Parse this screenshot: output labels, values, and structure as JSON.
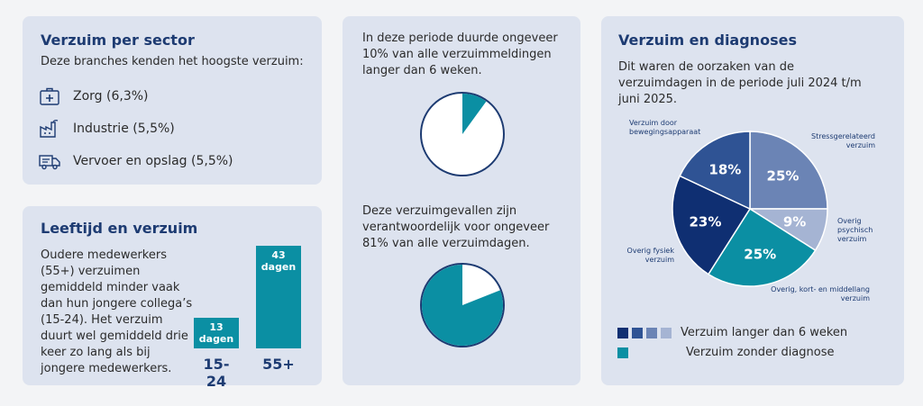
{
  "sector": {
    "title": "Verzuim per sector",
    "subtitle": "Deze branches kenden het hoogste verzuim:",
    "items": [
      {
        "label": "Zorg (6,3%)",
        "icon": "medical-kit-icon"
      },
      {
        "label": "Industrie (5,5%)",
        "icon": "factory-icon"
      },
      {
        "label": "Vervoer en opslag (5,5%)",
        "icon": "truck-icon"
      }
    ]
  },
  "age": {
    "title": "Leeftijd en verzuim",
    "text": "Oudere medewerkers (55+) verzuimen gemiddeld minder vaak dan hun jongere collega’s (15-24). Het verzuim duurt wel gemiddeld drie keer zo lang als bij jongere medewerkers.",
    "bars": [
      {
        "value": 13,
        "unit": "dagen",
        "label": "15-24"
      },
      {
        "value": 43,
        "unit": "dagen",
        "label": "55+"
      }
    ]
  },
  "middle": {
    "text1": "In deze periode duurde ongeveer 10% van alle verzuimmeldingen langer dan 6 weken.",
    "pie1_percent": 10,
    "text2": "Deze verzuimgevallen zijn verantwoordelijk voor ongeveer 81% van alle verzuimdagen.",
    "pie2_percent": 81
  },
  "diagnoses": {
    "title": "Verzuim en diagnoses",
    "subtitle": "Dit waren de oorzaken van de verzuimdagen in de periode juli 2024 t/m juni 2025.",
    "slices": [
      {
        "name": "Stressgerelateerd verzuim",
        "value": 25,
        "pct": "25%",
        "color": "#6b84b5"
      },
      {
        "name": "Overig psychisch verzuim",
        "value": 9,
        "pct": "9%",
        "color": "#a5b4d3"
      },
      {
        "name": "Overig, kort- en middellang verzuim",
        "value": 25,
        "pct": "25%",
        "color": "#0b8fa3"
      },
      {
        "name": "Overig fysiek verzuim",
        "value": 23,
        "pct": "23%",
        "color": "#0f2f72"
      },
      {
        "name": "Verzuim door bewegingsapparaat",
        "value": 18,
        "pct": "18%",
        "color": "#2f5394"
      }
    ],
    "legend": [
      {
        "label": "Verzuim langer dan 6 weken",
        "colors": [
          "#0f2f72",
          "#2f5394",
          "#6b84b5",
          "#a5b4d3"
        ]
      },
      {
        "label": "Verzuim zonder diagnose",
        "colors": [
          "#0b8fa3"
        ]
      }
    ]
  },
  "colors": {
    "accent": "#0b8fa3",
    "navy": "#1d3b72",
    "card": "#dde3ef"
  }
}
